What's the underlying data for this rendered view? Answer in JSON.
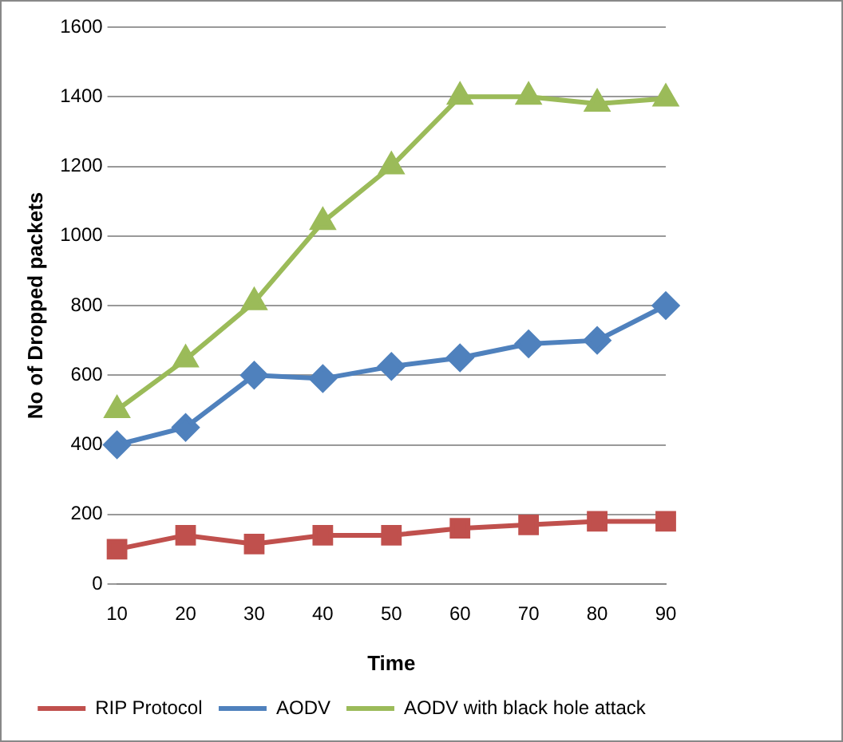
{
  "chart_data": {
    "type": "line",
    "xlabel": "Time",
    "ylabel": "No of Dropped packets",
    "categories": [
      "10",
      "20",
      "30",
      "40",
      "50",
      "60",
      "70",
      "80",
      "90"
    ],
    "series": [
      {
        "name": "RIP Protocol",
        "color": "#c0504d",
        "marker": "square",
        "values": [
          100,
          140,
          115,
          140,
          140,
          160,
          170,
          180,
          180
        ]
      },
      {
        "name": "AODV",
        "color": "#4f81bd",
        "marker": "diamond",
        "values": [
          400,
          450,
          600,
          590,
          625,
          650,
          690,
          700,
          800
        ]
      },
      {
        "name": "AODV with black hole attack",
        "color": "#9bbb59",
        "marker": "triangle",
        "values": [
          500,
          645,
          810,
          1040,
          1200,
          1400,
          1400,
          1380,
          1395
        ]
      }
    ],
    "ylim": [
      0,
      1600
    ],
    "yticks": [
      0,
      200,
      400,
      600,
      800,
      1000,
      1200,
      1400,
      1600
    ],
    "grid": "y",
    "legend": "bottom"
  }
}
